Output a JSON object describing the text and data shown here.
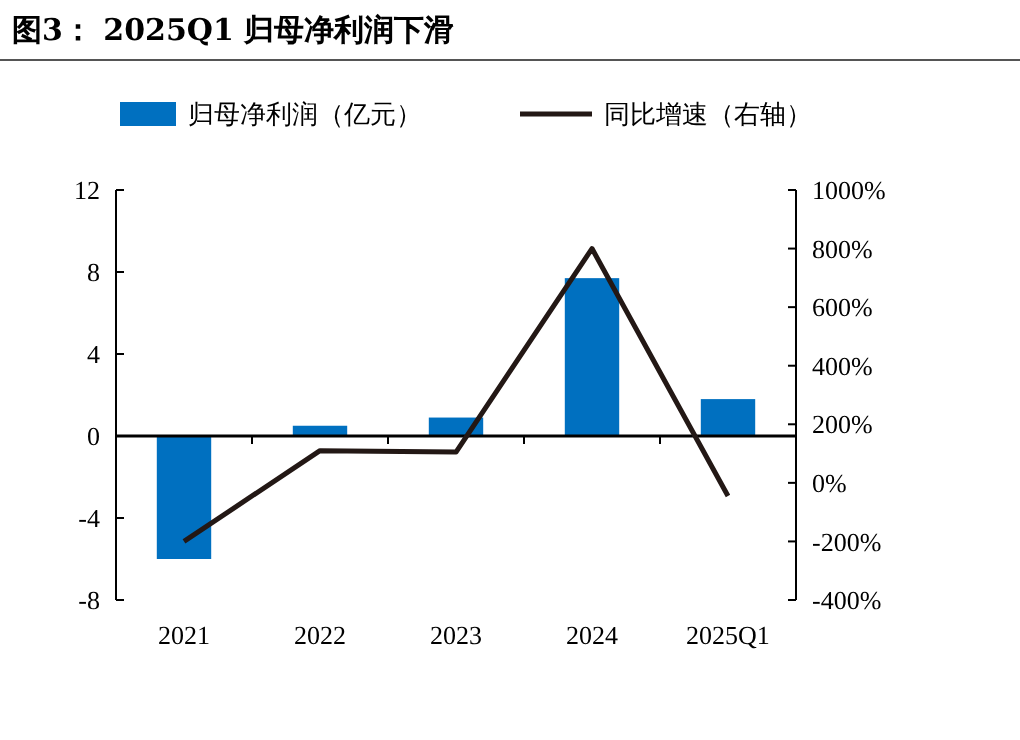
{
  "chart_data": {
    "type": "bar",
    "title": "图3：  2025Q1 归母净利润下滑",
    "categories": [
      "2021",
      "2022",
      "2023",
      "2024",
      "2025Q1"
    ],
    "series": [
      {
        "name": "归母净利润（亿元）",
        "color": "#0070c0",
        "values": [
          -6.0,
          0.5,
          0.9,
          7.7,
          1.8
        ]
      },
      {
        "name": "同比增速（右轴）",
        "type": "line",
        "axis": "y2",
        "color": "#231815",
        "values": [
          -200,
          110,
          105,
          800,
          -45
        ]
      }
    ],
    "ylim": [
      -8,
      12
    ],
    "yticks": [
      -8,
      -4,
      0,
      4,
      8,
      12
    ],
    "y2lim": [
      -400,
      1000
    ],
    "y2ticks": [
      {
        "value": -400,
        "label": "-400%"
      },
      {
        "value": -200,
        "label": "-200%"
      },
      {
        "value": 0,
        "label": "0%"
      },
      {
        "value": 200,
        "label": "200%"
      },
      {
        "value": 400,
        "label": "400%"
      },
      {
        "value": 600,
        "label": "600%"
      },
      {
        "value": 800,
        "label": "800%"
      },
      {
        "value": 1000,
        "label": "1000%"
      }
    ],
    "legend": "top"
  }
}
